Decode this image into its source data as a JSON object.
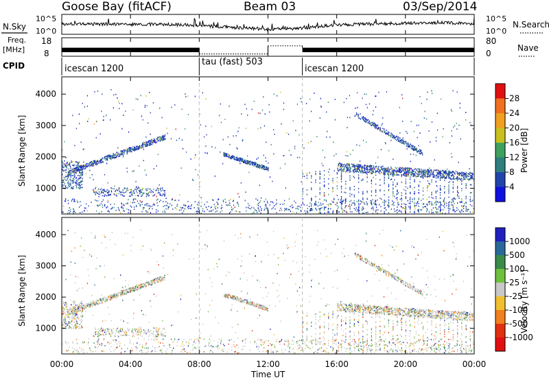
{
  "header": {
    "station": "Goose Bay (fitACF)",
    "beam": "Beam 03",
    "date": "03/Sep/2014"
  },
  "sky_panel": {
    "left_label": "N.Sky",
    "right_label": "N.Search",
    "left_ticks": [
      "10^5",
      "10^0"
    ],
    "right_ticks": [
      "10^5",
      "10^0"
    ]
  },
  "freq_panel": {
    "left_label_line1": "Freq.",
    "left_label_line2": "[MHz]",
    "left_ticks": [
      "18",
      "8"
    ],
    "right_label": "Nave",
    "right_ticks": [
      "80",
      "0"
    ]
  },
  "cpid": {
    "label": "CPID",
    "segments": [
      {
        "name": "icescan 1200",
        "start": 0,
        "end": 8
      },
      {
        "name": "tau (fast) 503",
        "start": 8,
        "end": 14
      },
      {
        "name": "icescan 1200",
        "start": 14,
        "end": 24
      }
    ]
  },
  "time_axis": {
    "label": "Time UT",
    "ticks": [
      "00:00",
      "04:00",
      "08:00",
      "12:00",
      "16:00",
      "20:00",
      "00:00"
    ]
  },
  "range_axis": {
    "label": "Slant Range [km]",
    "ticks": [
      "1000",
      "2000",
      "3000",
      "4000"
    ]
  },
  "power_colorbar": {
    "label": "Power [dB]",
    "ticks": [
      "4",
      "8",
      "12",
      "16",
      "20",
      "24",
      "28"
    ],
    "colors": [
      "#1010e0",
      "#2244aa",
      "#2f7f7f",
      "#3fa060",
      "#c8c020",
      "#f0a020",
      "#f07020",
      "#e01010"
    ]
  },
  "velocity_colorbar": {
    "label": "Velocity [m s⁻¹]",
    "ticks": [
      "1000",
      "500",
      "100",
      "25",
      "-25",
      "-100",
      "-500",
      "-1000"
    ],
    "colors": [
      "#2020c0",
      "#2a6a9a",
      "#3a8a4a",
      "#70c040",
      "#c8c8c8",
      "#f0c030",
      "#f08020",
      "#e03010",
      "#e01010"
    ]
  },
  "chart_data": [
    {
      "type": "line",
      "title": "N.Sky / N.Search",
      "x_range_hours": [
        0,
        24
      ],
      "series": [
        {
          "name": "N.Sky",
          "values_log10": [
            2.6,
            2.6,
            2.5,
            2.5,
            2.2,
            1.7,
            1.3,
            1.5,
            2.4,
            2.6,
            2.8,
            2.9,
            2.7
          ]
        },
        {
          "name": "N.Search",
          "values_log10": [
            2.7,
            2.7,
            2.6,
            2.6,
            2.3,
            1.8,
            1.4,
            1.6,
            2.5,
            2.7,
            2.9,
            3.0,
            2.8
          ]
        }
      ],
      "x": [
        0,
        2,
        4,
        6,
        8,
        10,
        12,
        14,
        16,
        18,
        20,
        22,
        24
      ]
    },
    {
      "type": "area",
      "title": "Freq / Nave",
      "x_range_hours": [
        0,
        24
      ],
      "series": [
        {
          "name": "Freq",
          "segments": [
            {
              "start": 0,
              "end": 8,
              "low": 10.2,
              "high": 12.6
            },
            {
              "start": 14,
              "end": 24,
              "low": 10.2,
              "high": 12.6
            }
          ]
        },
        {
          "name": "Nave",
          "segments": [
            {
              "start": 8,
              "end": 12,
              "value": 10
            },
            {
              "start": 12,
              "end": 14,
              "value": 45
            }
          ]
        }
      ]
    },
    {
      "type": "heatmap",
      "title": "Power",
      "x_range_hours": [
        0,
        24
      ],
      "y_range_km": [
        180,
        4550
      ],
      "clim": [
        0,
        30
      ],
      "seed": 7
    },
    {
      "type": "heatmap",
      "title": "Velocity",
      "x_range_hours": [
        0,
        24
      ],
      "y_range_km": [
        180,
        4550
      ],
      "clim": [
        -1200,
        1200
      ],
      "seed": 11
    }
  ]
}
